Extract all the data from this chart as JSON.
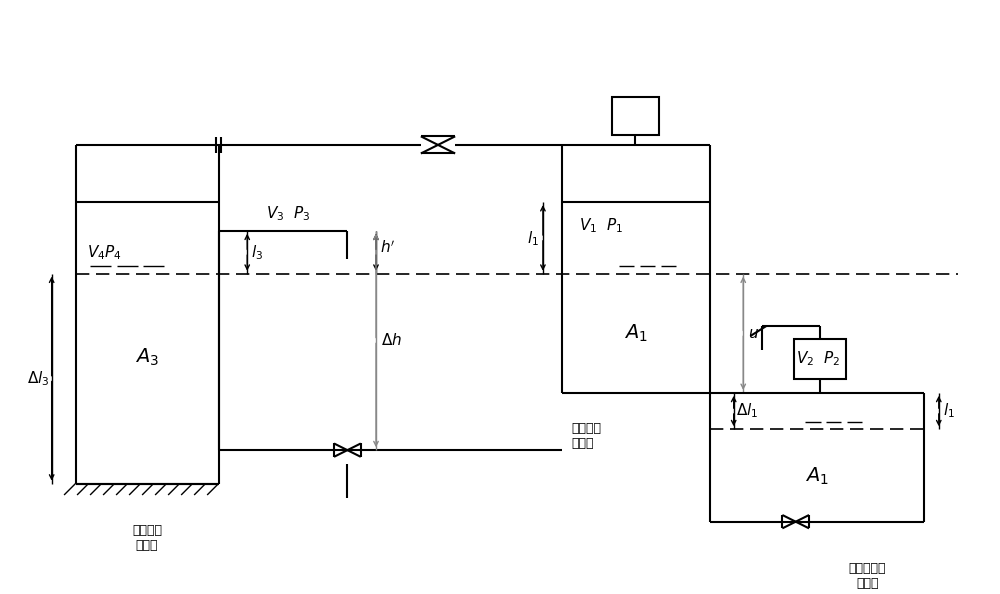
{
  "bg_color": "#ffffff",
  "lc": "#000000",
  "gc": "#888888",
  "fig_width": 10.0,
  "fig_height": 5.94,
  "labels": {
    "V3P3": "$V_3$  $P_3$",
    "V4P4": "$V_4$$P_4$",
    "V1P1": "$V_1$  $P_1$",
    "V2P2": "$V_2$  $P_2$",
    "A3": "$A_3$",
    "A1_top": "$A_1$",
    "A1_bot": "$A_1$",
    "l3": "$l_3$",
    "l1_top": "$l_1$",
    "l1_bot": "$l_1$",
    "h_prime": "$h^{\\prime}$",
    "delta_h": "$\\Delta h$",
    "delta_l3": "$\\Delta l_3$",
    "delta_l1": "$\\Delta l_1$",
    "u": "$u$",
    "fixed_no_disp": "固定于无\n位移处",
    "fixed_test_pt": "固定于测\n试点处",
    "test_pt_disp": "测试点发生\n位移后"
  }
}
